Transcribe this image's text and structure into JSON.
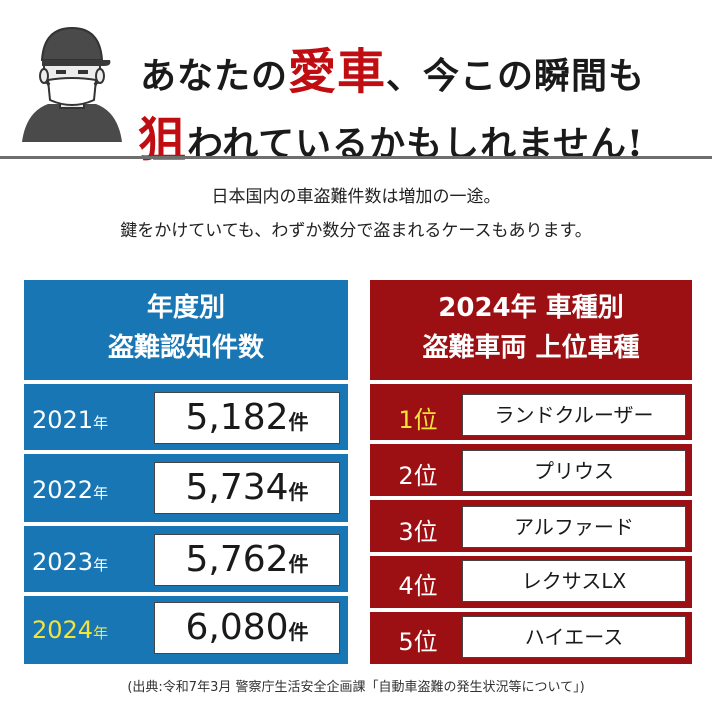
{
  "headline": {
    "line1_big": "愛車",
    "line1_rest_a": "あなたの",
    "line1_rest_b": "、今この瞬間も",
    "line2_big": "狙",
    "line2_rest": "われているかもしれません!"
  },
  "intro": {
    "line1": "日本国内の車盗難件数は増加の一途。",
    "line2": "鍵をかけていても、わずか数分で盗まれるケースもあります。"
  },
  "left_panel": {
    "title_line1": "年度別",
    "title_line2": "盗難認知件数",
    "rows": [
      {
        "year": "2021",
        "year_unit": "年",
        "count": "5,182",
        "count_unit": "件"
      },
      {
        "year": "2022",
        "year_unit": "年",
        "count": "5,734",
        "count_unit": "件"
      },
      {
        "year": "2023",
        "year_unit": "年",
        "count": "5,762",
        "count_unit": "件"
      },
      {
        "year": "2024",
        "year_unit": "年",
        "count": "6,080",
        "count_unit": "件"
      }
    ]
  },
  "right_panel": {
    "title_line1": "2024年 車種別",
    "title_line2": "盗難車両 上位車種",
    "rows": [
      {
        "rank": "1位",
        "model": "ランドクルーザー"
      },
      {
        "rank": "2位",
        "model": "プリウス"
      },
      {
        "rank": "3位",
        "model": "アルファード"
      },
      {
        "rank": "4位",
        "model": "レクサスLX"
      },
      {
        "rank": "5位",
        "model": "ハイエース"
      }
    ]
  },
  "source": "(出典:令和7年3月 警察庁生活安全企画課「自動車盗難の発生状況等について」)",
  "colors": {
    "accent_red": "#c00d12",
    "blue": "#1976b4",
    "dark_red": "#9c1014",
    "highlight": "#f4e33a"
  },
  "icons": {
    "thief": "masked-thief-icon"
  }
}
